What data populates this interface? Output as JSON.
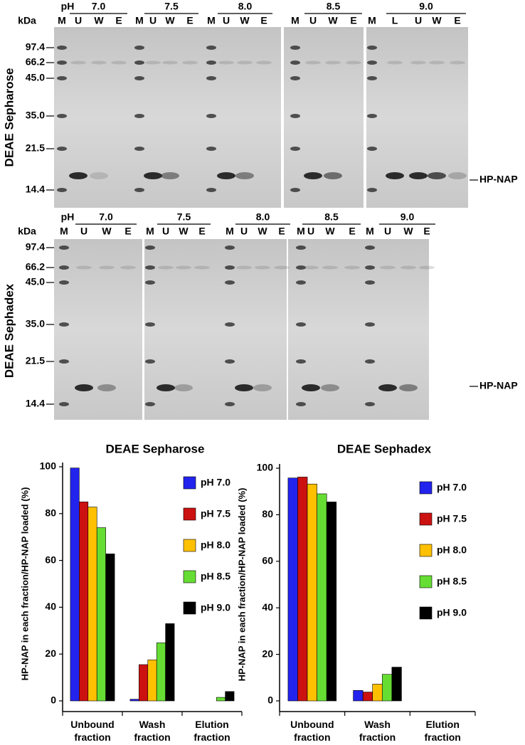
{
  "gels": [
    {
      "side_label": "DEAE Sepharose",
      "ph_label": "pH",
      "kda_label": "kDa",
      "band_label": "HP-NAP",
      "markers": [
        "97.4",
        "66.2",
        "45.0",
        "35.0",
        "21.5",
        "14.4"
      ],
      "groups": [
        {
          "ph": "7.0",
          "lanes": [
            "M",
            "U",
            "W",
            "E"
          ]
        },
        {
          "ph": "7.5",
          "lanes": [
            "M",
            "U",
            "W",
            "E"
          ]
        },
        {
          "ph": "8.0",
          "lanes": [
            "M",
            "U",
            "W",
            "E"
          ]
        },
        {
          "ph": "8.5",
          "lanes": [
            "M",
            "U",
            "W",
            "E"
          ]
        },
        {
          "ph": "9.0",
          "lanes": [
            "M",
            "L",
            "U",
            "W",
            "E"
          ]
        }
      ]
    },
    {
      "side_label": "DEAE Sephadex",
      "ph_label": "pH",
      "kda_label": "kDa",
      "band_label": "HP-NAP",
      "markers": [
        "97.4",
        "66.2",
        "45.0",
        "35.0",
        "21.5",
        "14.4"
      ],
      "groups": [
        {
          "ph": "7.0",
          "lanes": [
            "M",
            "U",
            "W",
            "E"
          ]
        },
        {
          "ph": "7.5",
          "lanes": [
            "M",
            "U",
            "W",
            "E"
          ]
        },
        {
          "ph": "8.0",
          "lanes": [
            "M",
            "U",
            "W",
            "E"
          ]
        },
        {
          "ph": "8.5",
          "lanes": [
            "M",
            "U",
            "W",
            "E"
          ]
        },
        {
          "ph": "9.0",
          "lanes": [
            "M",
            "U",
            "W",
            "E"
          ]
        }
      ]
    }
  ],
  "chart_data": [
    {
      "type": "bar",
      "title": "DEAE Sepharose",
      "y_label": "HP-NAP in each fraction/HP-NAP loaded (%)",
      "categories": [
        "Unbound fraction",
        "Wash fraction",
        "Elution fraction"
      ],
      "ylim": [
        0,
        100
      ],
      "yticks": [
        0,
        20,
        40,
        60,
        80,
        100
      ],
      "legend": "upper right",
      "series": [
        {
          "name": "pH 7.0",
          "color": "#2323ee",
          "values": [
            99.5,
            0.7,
            0
          ]
        },
        {
          "name": "pH 7.5",
          "color": "#cc1111",
          "values": [
            85,
            15.5,
            0
          ]
        },
        {
          "name": "pH 8.0",
          "color": "#ffc000",
          "values": [
            82.8,
            17.5,
            0
          ]
        },
        {
          "name": "pH 8.5",
          "color": "#66dd33",
          "values": [
            74,
            24.8,
            1.5
          ]
        },
        {
          "name": "pH 9.0",
          "color": "#000000",
          "values": [
            62.8,
            33,
            4
          ]
        }
      ]
    },
    {
      "type": "bar",
      "title": "DEAE Sephadex",
      "y_label": "HP-NAP in each fraction/HP-NAP loaded (%)",
      "categories": [
        "Unbound fraction",
        "Wash fraction",
        "Elution fraction"
      ],
      "ylim": [
        0,
        100
      ],
      "yticks": [
        0,
        20,
        40,
        60,
        80,
        100
      ],
      "legend": "upper right",
      "series": [
        {
          "name": "pH 7.0",
          "color": "#2323ee",
          "values": [
            95.8,
            4.5,
            0
          ]
        },
        {
          "name": "pH 7.5",
          "color": "#cc1111",
          "values": [
            96.2,
            3.8,
            0
          ]
        },
        {
          "name": "pH 8.0",
          "color": "#ffc000",
          "values": [
            93.2,
            7.2,
            0
          ]
        },
        {
          "name": "pH 8.5",
          "color": "#66dd33",
          "values": [
            89,
            11.4,
            0
          ]
        },
        {
          "name": "pH 9.0",
          "color": "#000000",
          "values": [
            85.5,
            14.5,
            0
          ]
        }
      ]
    }
  ]
}
